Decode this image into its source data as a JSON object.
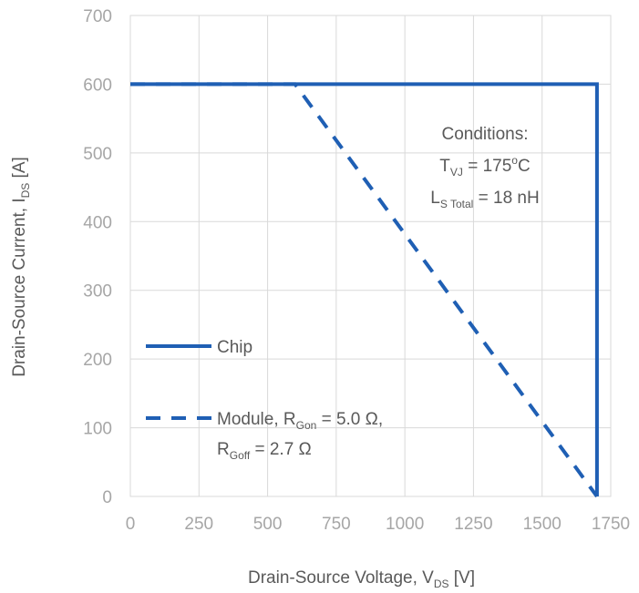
{
  "chart_data": {
    "type": "line",
    "xlabel": {
      "main": "Drain-Source Voltage, V",
      "sub": "DS",
      "unit": " [V]"
    },
    "ylabel": {
      "main": "Drain-Source Current, I",
      "sub": "DS",
      "unit": " [A]"
    },
    "xlim": [
      0,
      1750
    ],
    "ylim": [
      0,
      700
    ],
    "xticks": [
      0,
      250,
      500,
      750,
      1000,
      1250,
      1500,
      1750
    ],
    "yticks": [
      0,
      100,
      200,
      300,
      400,
      500,
      600,
      700
    ],
    "grid": true,
    "series": [
      {
        "name": "Chip",
        "style": "solid",
        "color": "#1f5fb4",
        "x": [
          0,
          1700,
          1700
        ],
        "y": [
          600,
          600,
          0
        ]
      },
      {
        "name": "Module, R_Gon = 5.0 Ω, R_Goff = 2.7 Ω",
        "style": "dashed",
        "color": "#1f5fb4",
        "x": [
          0,
          600,
          1700
        ],
        "y": [
          600,
          600,
          0
        ]
      }
    ],
    "legend": {
      "placement": "bottom-left",
      "entries": [
        {
          "lines": [
            [
              {
                "t": "Chip"
              }
            ]
          ]
        },
        {
          "lines": [
            [
              {
                "t": "Module, R"
              },
              {
                "t": "Gon",
                "sub": true
              },
              {
                "t": " =  5.0 Ω,"
              }
            ],
            [
              {
                "t": "R"
              },
              {
                "t": "Goff",
                "sub": true
              },
              {
                "t": " = 2.7 Ω"
              }
            ]
          ]
        }
      ]
    },
    "annotation": {
      "placement": "top-right",
      "lines": [
        [
          {
            "t": "Conditions:"
          }
        ],
        [
          {
            "t": "T"
          },
          {
            "t": "VJ",
            "sub": true
          },
          {
            "t": " = 175"
          },
          {
            "t": "o",
            "sup": true
          },
          {
            "t": "C"
          }
        ],
        [
          {
            "t": "L"
          },
          {
            "t": "S Total",
            "sub": true
          },
          {
            "t": " = 18 nH"
          }
        ]
      ]
    }
  }
}
